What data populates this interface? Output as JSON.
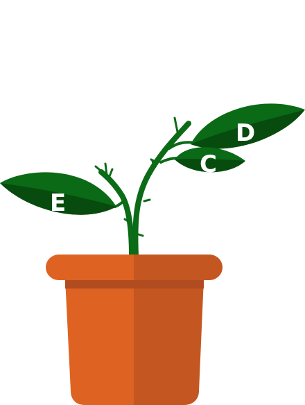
{
  "labels": {
    "leaf_d": "D",
    "leaf_c": "C",
    "leaf_e": "E"
  },
  "colors": {
    "pot_light": "#de6322",
    "pot_shade": "#c45721",
    "pot_band": "#b04c1f",
    "stem": "#0b6b17",
    "leaf_light": "#0a6a16",
    "leaf_dark": "#074b0f",
    "label": "#ffffff"
  }
}
